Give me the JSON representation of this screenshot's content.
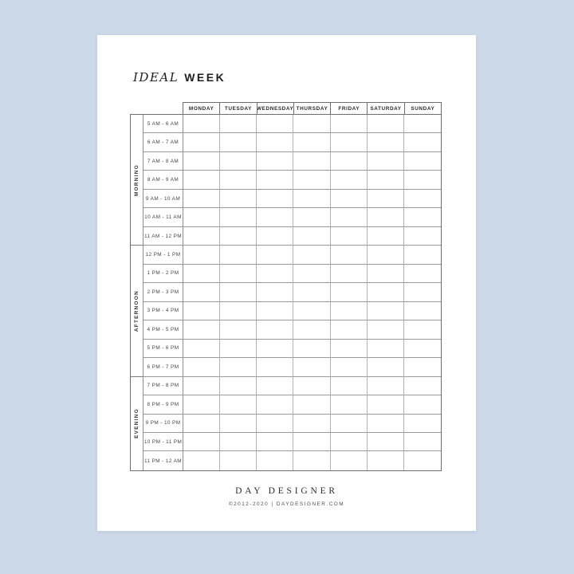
{
  "colors": {
    "background": "#ccd9e9",
    "paper": "#ffffff",
    "grid_line": "#8f8f8f",
    "text": "#2b2b2b"
  },
  "title": {
    "word_italic": "IDEAL",
    "word_bold": "WEEK"
  },
  "day_header": {
    "days": [
      "MONDAY",
      "TUESDAY",
      "WEDNESDAY",
      "THURSDAY",
      "FRIDAY",
      "SATURDAY",
      "SUNDAY"
    ]
  },
  "schedule": {
    "sections": [
      {
        "label": "MORNING",
        "slots": [
          "5 AM - 6 AM",
          "6 AM - 7 AM",
          "7 AM - 8 AM",
          "8 AM - 9 AM",
          "9 AM - 10 AM",
          "10 AM - 11 AM",
          "11 AM - 12 PM"
        ]
      },
      {
        "label": "AFTERNOON",
        "slots": [
          "12 PM - 1 PM",
          "1 PM - 2 PM",
          "2 PM - 3 PM",
          "3 PM - 4 PM",
          "4 PM - 5 PM",
          "5 PM - 6 PM",
          "6 PM - 7 PM"
        ]
      },
      {
        "label": "EVENING",
        "slots": [
          "7 PM - 8 PM",
          "8 PM - 9 PM",
          "9 PM - 10 PM",
          "10 PM - 11 PM",
          "11 PM - 12 AM"
        ]
      }
    ]
  },
  "footer": {
    "brand": "DAY DESIGNER",
    "copyright": "©2012-2020   |   DAYDESIGNER.COM"
  }
}
